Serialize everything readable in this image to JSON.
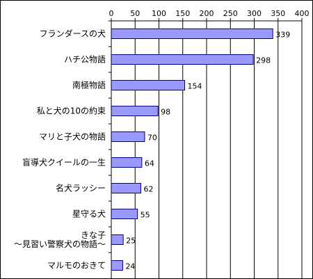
{
  "chart_data": {
    "type": "bar",
    "orientation": "horizontal",
    "title": "",
    "xlabel": "",
    "ylabel": "",
    "xlim": [
      0,
      400
    ],
    "xticks": [
      0,
      50,
      100,
      150,
      200,
      250,
      300,
      350,
      400
    ],
    "x_axis_position": "top",
    "grid": true,
    "legend": "none",
    "categories": [
      [
        "フランダースの犬"
      ],
      [
        "ハチ公物語"
      ],
      [
        "南極物語"
      ],
      [
        "私と犬の10の約束"
      ],
      [
        "マリと子犬の物語"
      ],
      [
        "盲導犬クイールの一生"
      ],
      [
        "名犬ラッシー"
      ],
      [
        "星守る犬"
      ],
      [
        "きな子",
        "～見習い警察犬の物語～"
      ],
      [
        "マルモのおきて"
      ]
    ],
    "values": [
      339,
      298,
      154,
      98,
      70,
      64,
      62,
      55,
      25,
      24
    ],
    "bar_color": "#9999ff",
    "bar_edge_color": "#000080",
    "grid_color": "#000000"
  }
}
